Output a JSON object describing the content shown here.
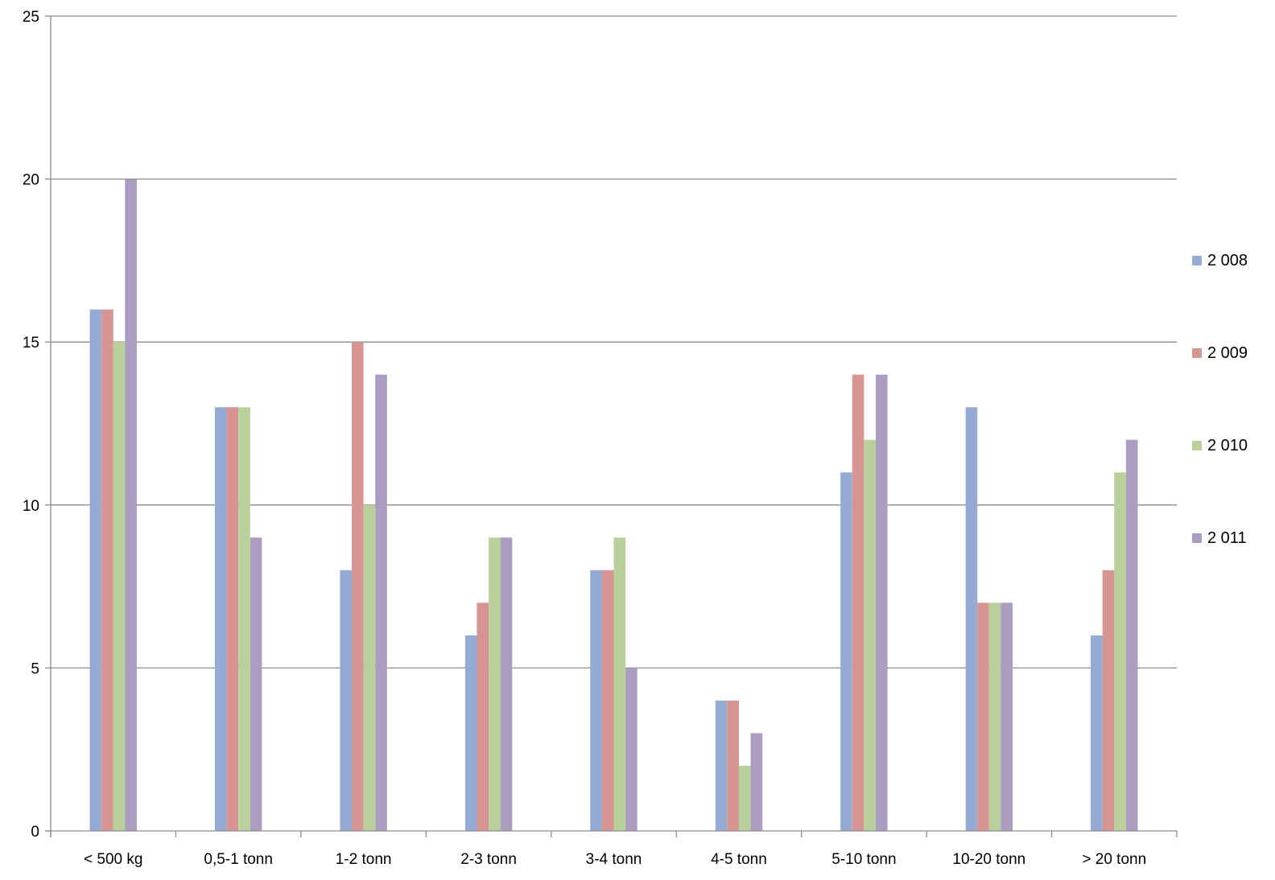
{
  "chart_data": {
    "type": "bar",
    "title": "",
    "xlabel": "",
    "ylabel": "",
    "categories": [
      "< 500 kg",
      "0,5-1 tonn",
      "1-2 tonn",
      "2-3 tonn",
      "3-4 tonn",
      "4-5 tonn",
      "5-10 tonn",
      "10-20 tonn",
      "> 20 tonn"
    ],
    "series": [
      {
        "name": "2 008",
        "color": "#95abd3",
        "values": [
          16,
          13,
          8,
          6,
          8,
          4,
          11,
          13,
          6
        ]
      },
      {
        "name": "2 009",
        "color": "#d69593",
        "values": [
          16,
          13,
          15,
          7,
          8,
          4,
          14,
          7,
          8
        ]
      },
      {
        "name": "2 010",
        "color": "#bad09a",
        "values": [
          15,
          13,
          10,
          9,
          9,
          2,
          12,
          7,
          11
        ]
      },
      {
        "name": "2 011",
        "color": "#aa9dc1",
        "values": [
          20,
          9,
          14,
          9,
          5,
          3,
          14,
          7,
          12
        ]
      }
    ],
    "ylim": [
      0,
      25
    ],
    "yticks": [
      0,
      5,
      10,
      15,
      20,
      25
    ],
    "grid": true,
    "legend": "right"
  }
}
